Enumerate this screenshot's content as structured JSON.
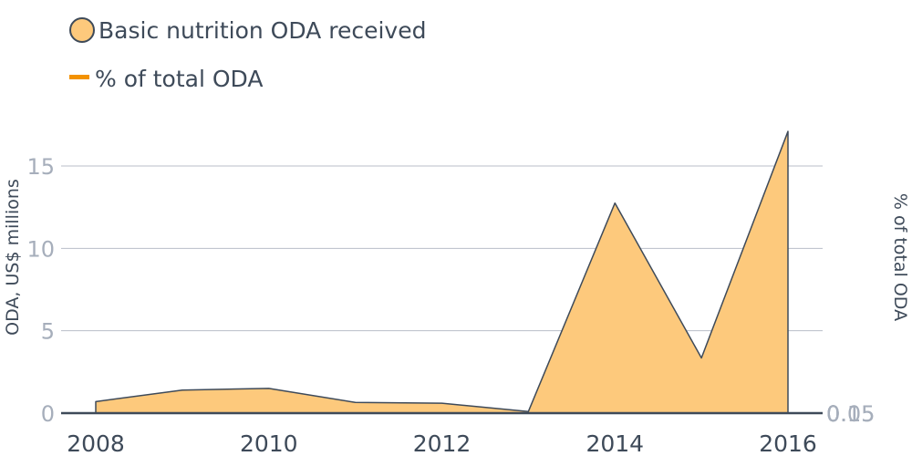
{
  "chart_data": {
    "type": "area",
    "x": [
      2008,
      2009,
      2010,
      2011,
      2012,
      2013,
      2014,
      2015,
      2016
    ],
    "series": [
      {
        "name": "Basic nutrition ODA received",
        "values": [
          0.7,
          1.4,
          1.5,
          0.65,
          0.6,
          0.1,
          12.75,
          3.35,
          17.1
        ]
      },
      {
        "name": "% of total ODA",
        "values": [
          0,
          0,
          0,
          0,
          0,
          0,
          0,
          0,
          0
        ]
      }
    ],
    "x_ticks": [
      "2008",
      "2010",
      "2012",
      "2014",
      "2016"
    ],
    "y_ticks": [
      "0",
      "5",
      "10",
      "15"
    ],
    "right_y_ticks": [
      "0",
      "0.05",
      "0.1",
      "0.15"
    ],
    "ylabel": "ODA, US$ millions",
    "y2label": "% of total ODA",
    "ylim": [
      0,
      18
    ],
    "grid": true,
    "legend_position": "top-left",
    "colors": {
      "area_fill": "#fdc97c",
      "area_stroke": "#3e4a59",
      "line": "#f39200",
      "grid": "#b8bec8",
      "axis": "#3e4a59"
    }
  }
}
